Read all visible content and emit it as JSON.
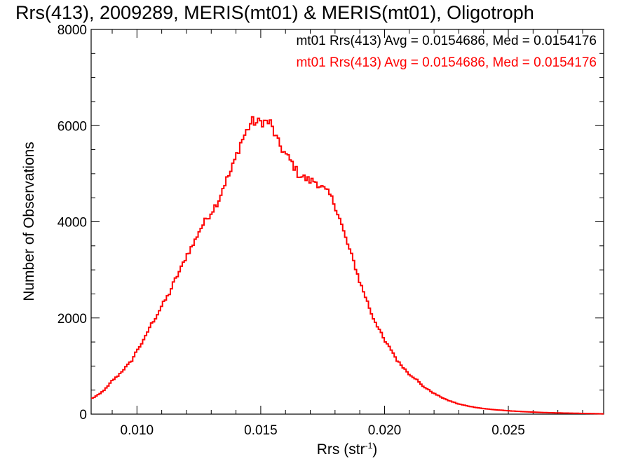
{
  "chart_data": {
    "type": "histogram",
    "title": "Rrs(413), 2009289, MERIS(mt01) & MERIS(mt01), Oligotroph",
    "xlabel": "Rrs (str",
    "xlabel_superscript": "-1",
    "xlabel_suffix": ")",
    "ylabel": "Number of Observations",
    "xlim": [
      0.00815,
      0.02885
    ],
    "ylim": [
      0,
      8000
    ],
    "xticks": [
      0.01,
      0.015,
      0.02,
      0.025
    ],
    "xtick_labels": [
      "0.010",
      "0.015",
      "0.020",
      "0.025"
    ],
    "yticks": [
      0,
      2000,
      4000,
      6000,
      8000
    ],
    "ytick_labels": [
      "0",
      "2000",
      "4000",
      "6000",
      "8000"
    ],
    "grid": false,
    "legend": {
      "placement": "top-right",
      "entries": [
        {
          "text": "mt01 Rrs(413) Avg = 0.0154686, Med = 0.0154176",
          "color": "#000000"
        },
        {
          "text": "mt01 Rrs(413) Avg = 0.0154686, Med = 0.0154176",
          "color": "#ff0000"
        }
      ]
    },
    "series": [
      {
        "color": "#ff0000",
        "step": true,
        "x": [
          0.0082,
          0.0085,
          0.0088,
          0.009,
          0.0092,
          0.0095,
          0.0098,
          0.01,
          0.0103,
          0.0105,
          0.0108,
          0.011,
          0.0113,
          0.0115,
          0.0118,
          0.012,
          0.0123,
          0.0125,
          0.0128,
          0.013,
          0.0133,
          0.0135,
          0.0138,
          0.014,
          0.0142,
          0.0144,
          0.0145,
          0.0146,
          0.0147,
          0.0148,
          0.015,
          0.0152,
          0.0154,
          0.0155,
          0.0157,
          0.016,
          0.0163,
          0.0165,
          0.0168,
          0.017,
          0.0172,
          0.0173,
          0.0175,
          0.0178,
          0.018,
          0.0182,
          0.0184,
          0.0186,
          0.0188,
          0.019,
          0.0193,
          0.0195,
          0.0198,
          0.02,
          0.0203,
          0.0205,
          0.0208,
          0.021,
          0.0213,
          0.0215,
          0.022,
          0.0225,
          0.023,
          0.0235,
          0.024,
          0.0245,
          0.025,
          0.0255,
          0.026,
          0.0265,
          0.027,
          0.0275,
          0.028,
          0.0285,
          0.0289
        ],
        "y": [
          330,
          420,
          560,
          700,
          780,
          950,
          1120,
          1330,
          1550,
          1800,
          2050,
          2250,
          2500,
          2750,
          3050,
          3300,
          3550,
          3800,
          4050,
          4200,
          4450,
          4750,
          5050,
          5350,
          5650,
          5850,
          5950,
          6050,
          6100,
          6050,
          6080,
          6080,
          6050,
          5900,
          5650,
          5400,
          5200,
          5000,
          4900,
          4850,
          4850,
          4800,
          4700,
          4550,
          4350,
          4050,
          3700,
          3400,
          3100,
          2750,
          2350,
          2050,
          1750,
          1520,
          1320,
          1120,
          950,
          830,
          720,
          600,
          430,
          300,
          210,
          155,
          115,
          90,
          70,
          55,
          42,
          32,
          25,
          20,
          15,
          10,
          5
        ]
      }
    ]
  }
}
